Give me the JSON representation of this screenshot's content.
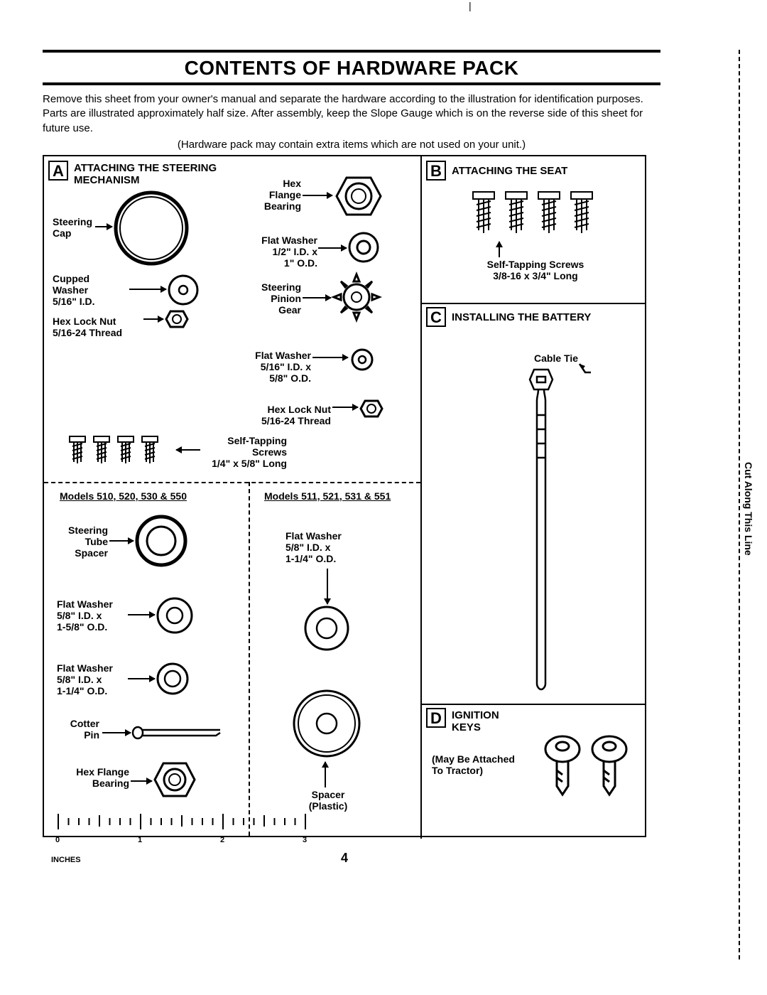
{
  "title": "CONTENTS OF HARDWARE PACK",
  "intro": "Remove this sheet from your owner's manual and separate the hardware according to the illustration for identification purposes. Parts are illustrated approximately half size. After assembly, keep the Slope Gauge which is on the reverse side of this sheet for future use.",
  "hw_note": "(Hardware pack may contain extra items which are not used on your unit.)",
  "sections": {
    "A": {
      "letter": "A",
      "title": "ATTACHING THE STEERING MECHANISM"
    },
    "B": {
      "letter": "B",
      "title": "ATTACHING THE SEAT"
    },
    "C": {
      "letter": "C",
      "title": "INSTALLING THE BATTERY"
    },
    "D": {
      "letter": "D",
      "title": "IGNITION KEYS"
    }
  },
  "labels": {
    "steering_cap": "Steering\nCap",
    "cupped_washer": "Cupped\nWasher\n5/16\" I.D.",
    "hex_lock_nut_a": "Hex Lock Nut\n5/16-24 Thread",
    "hex_flange_bearing": "Hex\nFlange\nBearing",
    "flat_washer_half": "Flat Washer\n1/2\" I.D. x\n1\" O.D.",
    "steering_pinion": "Steering\nPinion\nGear",
    "flat_washer_516": "Flat Washer\n5/16\" I.D. x\n5/8\" O.D.",
    "hex_lock_nut_b": "Hex Lock Nut\n5/16-24 Thread",
    "self_tap_a": "Self-Tapping\nScrews\n1/4\" x 5/8\" Long",
    "models_left": "Models 510, 520, 530 & 550",
    "models_right": "Models 511, 521, 531 & 551",
    "steering_tube_spacer": "Steering\nTube\nSpacer",
    "flat_washer_58_158": "Flat Washer\n5/8\" I.D. x\n1-5/8\" O.D.",
    "flat_washer_58_114_left": "Flat Washer\n5/8\" I.D. x\n1-1/4\" O.D.",
    "cotter_pin": "Cotter\nPin",
    "hex_flange_bearing2": "Hex Flange\nBearing",
    "flat_washer_58_114_right": "Flat Washer\n5/8\" I.D. x\n1-1/4\" O.D.",
    "spacer_plastic": "Spacer\n(Plastic)",
    "self_tap_b": "Self-Tapping Screws\n3/8-16 x 3/4\" Long",
    "cable_tie": "Cable Tie",
    "keys_note": "(May Be Attached\nTo Tractor)"
  },
  "cutline_label": "Cut Along This Line",
  "ruler_label": "INCHES",
  "ruler_marks": [
    "0",
    "1",
    "2",
    "3"
  ],
  "page_number": "4",
  "colors": {
    "ink": "#000000",
    "bg": "#ffffff"
  }
}
